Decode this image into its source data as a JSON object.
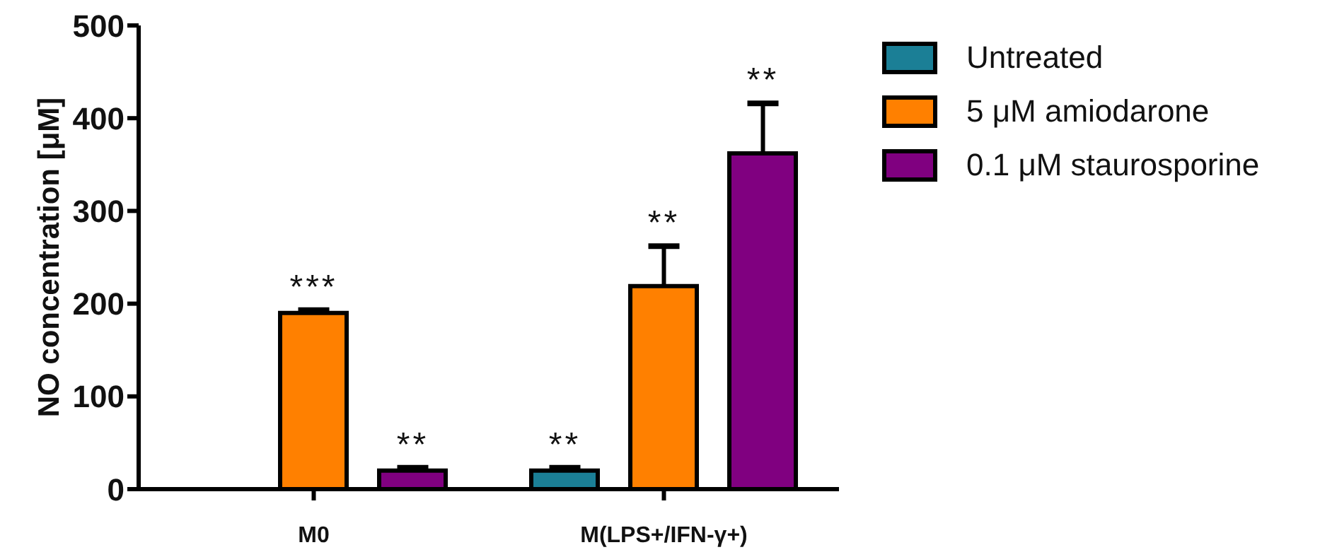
{
  "chart_data": {
    "type": "bar",
    "ylabel": "NO concentration [μM]",
    "categories": [
      "M0",
      "M(LPS+/IFN-γ+)"
    ],
    "series": [
      {
        "name": "Untreated",
        "color": "#1b7f96",
        "values": [
          0,
          20
        ],
        "errors": [
          null,
          3
        ],
        "value_labels": [
          null,
          "**"
        ]
      },
      {
        "name": "5 μM amiodarone",
        "color": "#ff8000",
        "values": [
          190,
          219
        ],
        "errors": [
          3,
          43
        ],
        "value_labels": [
          "***",
          "**"
        ]
      },
      {
        "name": "0.1 μM staurosporine",
        "color": "#800080",
        "values": [
          20,
          362
        ],
        "errors": [
          3,
          54
        ],
        "value_labels": [
          "**",
          "**"
        ]
      }
    ],
    "ylim": [
      0,
      500
    ],
    "yticks": [
      0,
      100,
      200,
      300,
      400,
      500
    ],
    "grid": false,
    "legend": "top right"
  }
}
